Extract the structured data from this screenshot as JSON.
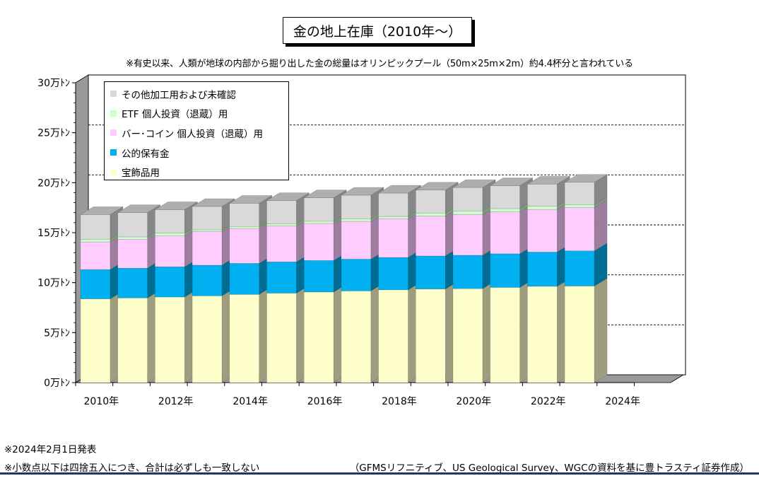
{
  "title": "金の地上在庫（2010年～）",
  "subtitle": "※有史以来、人類が地球の内部から掘り出した金の総量はオリンピックプール（50m×25m×2m）約4.4杯分と言われている",
  "notes": [
    "※2024年2月1日発表",
    "※小数点以下は四捨五入につき、合計は必ずしも一致しない"
  ],
  "source": "（GFMSリフニティブ、US Geological Survey、WGCの資料を基に豊トラスティ証券作成）",
  "legend": [
    {
      "label": "その他加工用および未確認",
      "color": "#d9d9d9"
    },
    {
      "label": "ETF 個人投資（退蔵）用",
      "color": "#ccffcc"
    },
    {
      "label": "バー･コイン 個人投資（退蔵）用",
      "color": "#ffccff"
    },
    {
      "label": "公的保有金",
      "color": "#00b0f0"
    },
    {
      "label": "宝飾品用",
      "color": "#ffffcc"
    }
  ],
  "chart_data": {
    "type": "bar",
    "stacked": true,
    "three_d": true,
    "ylim": [
      0,
      300000
    ],
    "y_ticks": [
      {
        "value": 0,
        "label": "0万ﾄﾝ"
      },
      {
        "value": 50000,
        "label": "5万ﾄﾝ"
      },
      {
        "value": 100000,
        "label": "10万ﾄﾝ"
      },
      {
        "value": 150000,
        "label": "15万ﾄﾝ"
      },
      {
        "value": 200000,
        "label": "20万ﾄﾝ"
      },
      {
        "value": 250000,
        "label": "25万ﾄﾝ"
      },
      {
        "value": 300000,
        "label": "30万ﾄﾝ"
      }
    ],
    "categories": [
      "2010年",
      "2011年",
      "2012年",
      "2013年",
      "2014年",
      "2015年",
      "2016年",
      "2017年",
      "2018年",
      "2019年",
      "2020年",
      "2021年",
      "2022年",
      "2023年",
      "2024年"
    ],
    "x_tick_labels": [
      "2010年",
      "2012年",
      "2014年",
      "2016年",
      "2018年",
      "2020年",
      "2022年",
      "2024年"
    ],
    "series": [
      {
        "name": "宝飾品用",
        "color": "#ffffcc",
        "values": [
          83800,
          84700,
          85600,
          86800,
          88200,
          89500,
          90600,
          91700,
          92800,
          93600,
          94000,
          95200,
          96300,
          96600,
          null
        ]
      },
      {
        "name": "公的保有金",
        "color": "#00b0f0",
        "values": [
          29300,
          29800,
          30300,
          30700,
          31100,
          31300,
          31600,
          31800,
          32400,
          33100,
          33400,
          33700,
          34300,
          35200,
          null
        ]
      },
      {
        "name": "バー･コイン 個人投資（退蔵）用",
        "color": "#ffccff",
        "values": [
          27700,
          28900,
          30900,
          33600,
          34900,
          35900,
          37000,
          37800,
          38700,
          39900,
          40900,
          41900,
          42700,
          43300,
          null
        ]
      },
      {
        "name": "ETF 個人投資（退蔵）用",
        "color": "#ccffcc",
        "values": [
          2600,
          2400,
          2800,
          1700,
          2000,
          2000,
          2200,
          2600,
          2300,
          3000,
          3400,
          3300,
          3100,
          2900,
          null
        ]
      },
      {
        "name": "その他加工用および未確認",
        "color": "#d9d9d9",
        "values": [
          24700,
          24300,
          23400,
          23400,
          23200,
          23400,
          23500,
          23600,
          23400,
          23000,
          23500,
          22900,
          22200,
          22400,
          null
        ]
      }
    ],
    "grid": true
  }
}
